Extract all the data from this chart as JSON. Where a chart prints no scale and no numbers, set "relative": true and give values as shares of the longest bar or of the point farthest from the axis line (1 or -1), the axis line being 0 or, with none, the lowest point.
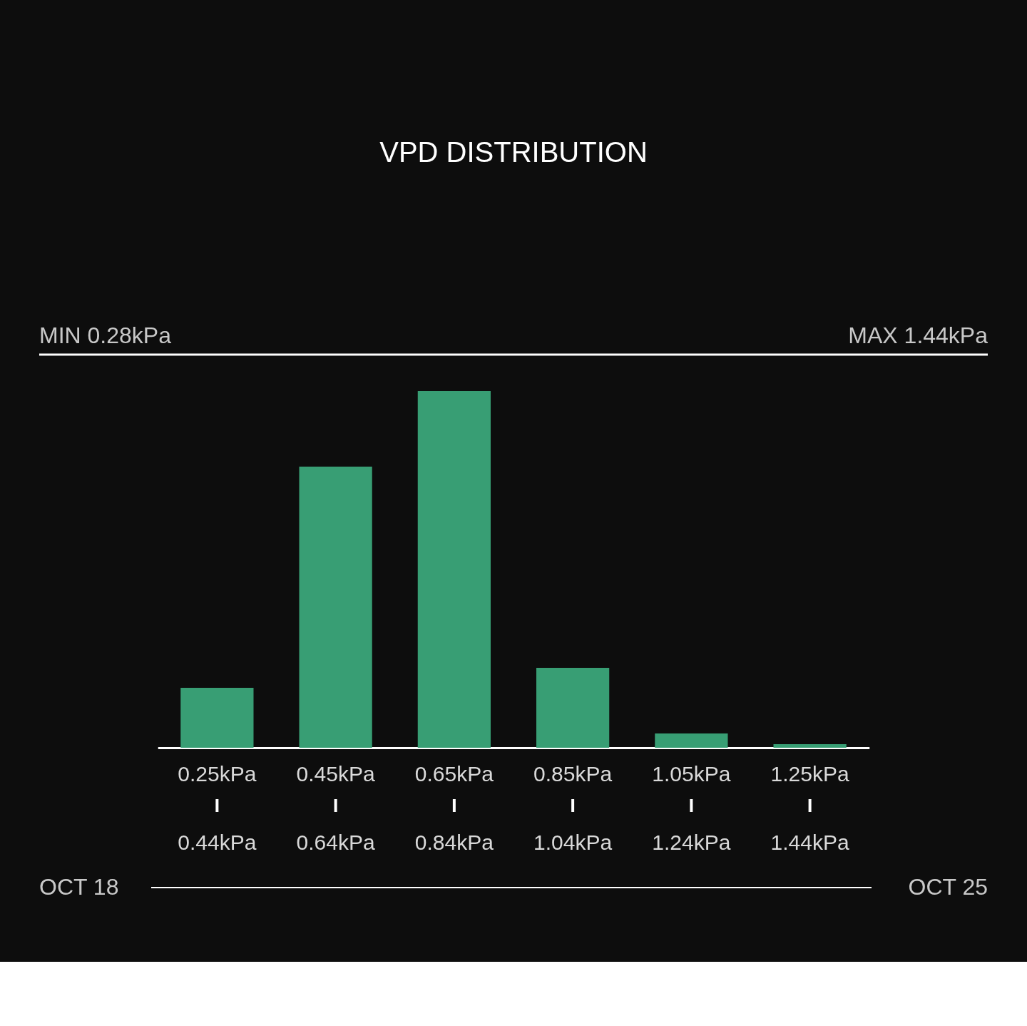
{
  "chart_data": {
    "type": "bar",
    "title": "VPD DISTRIBUTION",
    "relative": true,
    "categories": [
      "0.25kPa\n0.44kPa",
      "0.45kPa\n0.64kPa",
      "0.65kPa\n0.84kPa",
      "0.85kPa\n1.04kPa",
      "1.05kPa\n1.24kPa",
      "1.25kPa\n1.44kPa"
    ],
    "values": [
      0.168,
      0.788,
      1,
      0.224,
      0.04,
      0.01
    ],
    "color": "#389e74",
    "grid": false,
    "annotations": [
      "MIN 0.28kPa",
      "MAX 1.44kPa",
      "OCT 18",
      "OCT 25"
    ]
  }
}
